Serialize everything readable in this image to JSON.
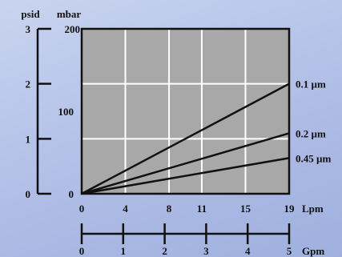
{
  "chart_data": {
    "type": "line",
    "plot_background": "#a8a8a8",
    "grid": true,
    "grid_color": "#ffffff",
    "line_color": "#111111",
    "x_primary": {
      "unit": "Lpm",
      "range": [
        0,
        19
      ],
      "ticks": [
        0,
        4,
        8,
        11,
        15,
        19
      ],
      "tick_labels": [
        "0",
        "4",
        "8",
        "11",
        "15",
        "19"
      ]
    },
    "x_secondary": {
      "unit": "Gpm",
      "range": [
        0,
        5
      ],
      "ticks": [
        0,
        1,
        2,
        3,
        4,
        5
      ],
      "tick_labels": [
        "0",
        "1",
        "2",
        "3",
        "4",
        "5"
      ]
    },
    "y_primary": {
      "unit": "mbar",
      "range": [
        0,
        200
      ],
      "tick_labels": [
        {
          "value": 0,
          "label": "0"
        },
        {
          "value": 100,
          "label": "100"
        },
        {
          "value": 200,
          "label": "200"
        }
      ]
    },
    "y_secondary": {
      "unit": "psid",
      "range": [
        0,
        3
      ],
      "ticks": [
        0,
        1,
        2,
        3
      ],
      "tick_labels": [
        "0",
        "1",
        "2",
        "3"
      ]
    },
    "series": [
      {
        "name": "0.1 µm",
        "x": [
          0,
          19
        ],
        "y": [
          0,
          2.0
        ]
      },
      {
        "name": "0.2 µm",
        "x": [
          0,
          19
        ],
        "y": [
          0,
          1.1
        ]
      },
      {
        "name": "0.45 µm",
        "x": [
          0,
          19
        ],
        "y": [
          0,
          0.65
        ]
      }
    ]
  }
}
